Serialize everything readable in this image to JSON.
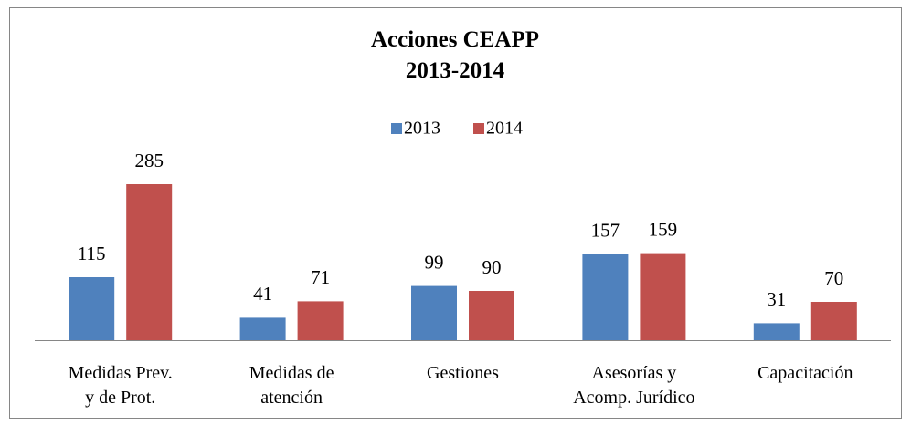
{
  "chart_data": {
    "type": "bar",
    "title": "Acciones CEAPP\n2013-2014",
    "categories": [
      "Medidas Prev.\ny de Prot.",
      "Medidas de\natención",
      "Gestiones",
      "Asesorías y\nAcomp. Jurídico",
      "Capacitación"
    ],
    "series": [
      {
        "name": "2013",
        "color": "#4f81bd",
        "values": [
          115,
          41,
          99,
          157,
          31
        ]
      },
      {
        "name": "2014",
        "color": "#c0504d",
        "values": [
          285,
          71,
          90,
          159,
          70
        ]
      }
    ],
    "legend": "top"
  }
}
